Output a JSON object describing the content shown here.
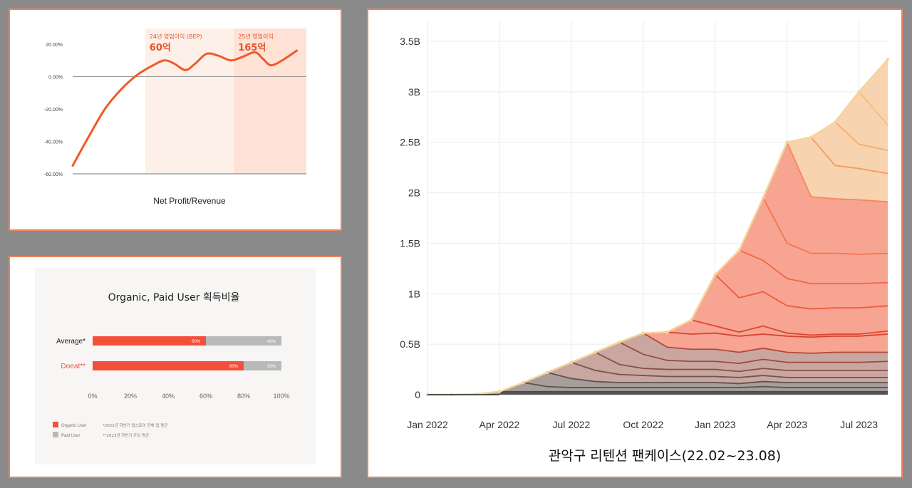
{
  "panel1": {
    "title": "Net Profit/Revenue",
    "type": "line",
    "yticks": [
      "20.00%",
      "0.00%",
      "-20.00%",
      "-40.00%",
      "-60.00%"
    ],
    "tick_values": [
      20,
      0,
      -20,
      -40,
      -60
    ],
    "ylim": [
      -60,
      20
    ],
    "band1": {
      "label": "24년 영업이익 (BEP)",
      "value": "60억",
      "from_x": 4.5,
      "to_x": 10
    },
    "band2": {
      "label": "25년 영업이익",
      "value": "165억",
      "from_x": 10,
      "to_x": 14.5
    },
    "xlim": [
      0,
      14.5
    ],
    "line_color": "#f05a28",
    "points": [
      {
        "x": 0.0,
        "y": -55
      },
      {
        "x": 1.0,
        "y": -37
      },
      {
        "x": 2.0,
        "y": -20
      },
      {
        "x": 3.0,
        "y": -8
      },
      {
        "x": 4.0,
        "y": 1
      },
      {
        "x": 5.0,
        "y": 7
      },
      {
        "x": 5.7,
        "y": 10
      },
      {
        "x": 6.3,
        "y": 8
      },
      {
        "x": 7.0,
        "y": 4
      },
      {
        "x": 7.6,
        "y": 8
      },
      {
        "x": 8.3,
        "y": 14
      },
      {
        "x": 9.0,
        "y": 13
      },
      {
        "x": 9.8,
        "y": 10
      },
      {
        "x": 10.5,
        "y": 12
      },
      {
        "x": 11.3,
        "y": 15
      },
      {
        "x": 11.8,
        "y": 11
      },
      {
        "x": 12.3,
        "y": 7
      },
      {
        "x": 13.0,
        "y": 10
      },
      {
        "x": 13.9,
        "y": 16
      }
    ]
  },
  "panel2": {
    "title": "Organic, Paid User 획득비율",
    "type": "bar",
    "categories": [
      "Average*",
      "Doeat**"
    ],
    "series": [
      {
        "name": "Organic User",
        "values": [
          60,
          80
        ],
        "labels": [
          "60%",
          "80%"
        ],
        "color": "#f2503a"
      },
      {
        "name": "Paid User",
        "values": [
          40,
          20
        ],
        "labels": [
          "40%",
          "20%"
        ],
        "color": "#b9b9b9"
      }
    ],
    "xticks": [
      "0%",
      "20%",
      "40%",
      "60%",
      "80%",
      "100%"
    ],
    "xlim": [
      0,
      100
    ],
    "notes": [
      "*2022년 하반기 앱스토어 전체 앱 평균",
      "**2023년 하반기 두잇 평균"
    ]
  },
  "panel3": {
    "title": "관악구 리텐션 팬케이스(22.02~23.08)",
    "type": "area",
    "yticks": [
      "3.5B",
      "3B",
      "2.5B",
      "2B",
      "1.5B",
      "1B",
      "0.5B",
      "0"
    ],
    "tick_values": [
      3.5,
      3,
      2.5,
      2,
      1.5,
      1,
      0.5,
      0
    ],
    "ylim": [
      0,
      3.5
    ],
    "xticks": [
      "Jan 2022",
      "Apr 2022",
      "Jul 2022",
      "Oct 2022",
      "Jan 2023",
      "Apr 2023",
      "Jul 2023"
    ],
    "xtick_pos": [
      0,
      3,
      6,
      9,
      12,
      15,
      18
    ],
    "xlim": [
      0,
      19.2
    ],
    "total": [
      {
        "x": 0,
        "y": 0
      },
      {
        "x": 1,
        "y": 0
      },
      {
        "x": 2,
        "y": 0.005
      },
      {
        "x": 3,
        "y": 0.03
      },
      {
        "x": 4,
        "y": 0.12
      },
      {
        "x": 5,
        "y": 0.22
      },
      {
        "x": 6,
        "y": 0.32
      },
      {
        "x": 7,
        "y": 0.42
      },
      {
        "x": 8,
        "y": 0.52
      },
      {
        "x": 9,
        "y": 0.61
      },
      {
        "x": 10,
        "y": 0.62
      },
      {
        "x": 11,
        "y": 0.74
      },
      {
        "x": 12,
        "y": 1.19
      },
      {
        "x": 13,
        "y": 1.43
      },
      {
        "x": 14,
        "y": 1.95
      },
      {
        "x": 15,
        "y": 2.5
      },
      {
        "x": 16,
        "y": 2.55
      },
      {
        "x": 17,
        "y": 2.7
      },
      {
        "x": 18,
        "y": 3.0
      },
      {
        "x": 19.2,
        "y": 3.32
      }
    ],
    "cohort_lines": [
      [
        {
          "x": 10,
          "y": 0.62
        },
        {
          "x": 11,
          "y": 0.6
        },
        {
          "x": 12,
          "y": 0.61
        },
        {
          "x": 13,
          "y": 0.58
        },
        {
          "x": 14,
          "y": 0.6
        },
        {
          "x": 15,
          "y": 0.58
        },
        {
          "x": 16,
          "y": 0.57
        },
        {
          "x": 17,
          "y": 0.58
        },
        {
          "x": 18,
          "y": 0.58
        },
        {
          "x": 19.2,
          "y": 0.6
        }
      ],
      [
        {
          "x": 11,
          "y": 0.74
        },
        {
          "x": 12,
          "y": 0.68
        },
        {
          "x": 13,
          "y": 0.62
        },
        {
          "x": 14,
          "y": 0.68
        },
        {
          "x": 15,
          "y": 0.61
        },
        {
          "x": 16,
          "y": 0.59
        },
        {
          "x": 17,
          "y": 0.6
        },
        {
          "x": 18,
          "y": 0.6
        },
        {
          "x": 19.2,
          "y": 0.63
        }
      ],
      [
        {
          "x": 12,
          "y": 1.19
        },
        {
          "x": 13,
          "y": 0.96
        },
        {
          "x": 14,
          "y": 1.02
        },
        {
          "x": 15,
          "y": 0.88
        },
        {
          "x": 16,
          "y": 0.85
        },
        {
          "x": 17,
          "y": 0.86
        },
        {
          "x": 18,
          "y": 0.86
        },
        {
          "x": 19.2,
          "y": 0.88
        }
      ],
      [
        {
          "x": 13,
          "y": 1.43
        },
        {
          "x": 14,
          "y": 1.33
        },
        {
          "x": 15,
          "y": 1.15
        },
        {
          "x": 16,
          "y": 1.1
        },
        {
          "x": 17,
          "y": 1.1
        },
        {
          "x": 18,
          "y": 1.1
        },
        {
          "x": 19.2,
          "y": 1.11
        }
      ],
      [
        {
          "x": 14,
          "y": 1.95
        },
        {
          "x": 15,
          "y": 1.5
        },
        {
          "x": 16,
          "y": 1.4
        },
        {
          "x": 17,
          "y": 1.4
        },
        {
          "x": 18,
          "y": 1.39
        },
        {
          "x": 19.2,
          "y": 1.4
        }
      ],
      [
        {
          "x": 15,
          "y": 2.5
        },
        {
          "x": 16,
          "y": 1.96
        },
        {
          "x": 17,
          "y": 1.94
        },
        {
          "x": 18,
          "y": 1.93
        },
        {
          "x": 19.2,
          "y": 1.91
        }
      ],
      [
        {
          "x": 16,
          "y": 2.55
        },
        {
          "x": 17,
          "y": 2.27
        },
        {
          "x": 18,
          "y": 2.24
        },
        {
          "x": 19.2,
          "y": 2.19
        }
      ],
      [
        {
          "x": 17,
          "y": 2.7
        },
        {
          "x": 18,
          "y": 2.48
        },
        {
          "x": 19.2,
          "y": 2.42
        }
      ],
      [
        {
          "x": 18,
          "y": 3.0
        },
        {
          "x": 19.2,
          "y": 2.67
        }
      ]
    ],
    "dark_lines": [
      [
        {
          "x": 3,
          "y": 0.03
        },
        {
          "x": 4,
          "y": 0.03
        },
        {
          "x": 5,
          "y": 0.03
        },
        {
          "x": 6,
          "y": 0.03
        },
        {
          "x": 7,
          "y": 0.03
        },
        {
          "x": 8,
          "y": 0.03
        },
        {
          "x": 9,
          "y": 0.03
        },
        {
          "x": 10,
          "y": 0.03
        },
        {
          "x": 11,
          "y": 0.03
        },
        {
          "x": 12,
          "y": 0.03
        },
        {
          "x": 13,
          "y": 0.03
        },
        {
          "x": 14,
          "y": 0.03
        },
        {
          "x": 15,
          "y": 0.03
        },
        {
          "x": 16,
          "y": 0.03
        },
        {
          "x": 17,
          "y": 0.03
        },
        {
          "x": 18,
          "y": 0.03
        },
        {
          "x": 19.2,
          "y": 0.03
        }
      ],
      [
        {
          "x": 4,
          "y": 0.12
        },
        {
          "x": 5,
          "y": 0.08
        },
        {
          "x": 6,
          "y": 0.07
        },
        {
          "x": 7,
          "y": 0.07
        },
        {
          "x": 8,
          "y": 0.07
        },
        {
          "x": 9,
          "y": 0.07
        },
        {
          "x": 10,
          "y": 0.07
        },
        {
          "x": 11,
          "y": 0.07
        },
        {
          "x": 12,
          "y": 0.07
        },
        {
          "x": 13,
          "y": 0.07
        },
        {
          "x": 14,
          "y": 0.08
        },
        {
          "x": 15,
          "y": 0.07
        },
        {
          "x": 16,
          "y": 0.07
        },
        {
          "x": 17,
          "y": 0.07
        },
        {
          "x": 18,
          "y": 0.07
        },
        {
          "x": 19.2,
          "y": 0.07
        }
      ],
      [
        {
          "x": 5,
          "y": 0.22
        },
        {
          "x": 6,
          "y": 0.16
        },
        {
          "x": 7,
          "y": 0.13
        },
        {
          "x": 8,
          "y": 0.12
        },
        {
          "x": 9,
          "y": 0.12
        },
        {
          "x": 10,
          "y": 0.12
        },
        {
          "x": 11,
          "y": 0.12
        },
        {
          "x": 12,
          "y": 0.12
        },
        {
          "x": 13,
          "y": 0.11
        },
        {
          "x": 14,
          "y": 0.13
        },
        {
          "x": 15,
          "y": 0.12
        },
        {
          "x": 16,
          "y": 0.12
        },
        {
          "x": 17,
          "y": 0.12
        },
        {
          "x": 18,
          "y": 0.12
        },
        {
          "x": 19.2,
          "y": 0.12
        }
      ],
      [
        {
          "x": 6,
          "y": 0.32
        },
        {
          "x": 7,
          "y": 0.24
        },
        {
          "x": 8,
          "y": 0.2
        },
        {
          "x": 9,
          "y": 0.19
        },
        {
          "x": 10,
          "y": 0.18
        },
        {
          "x": 11,
          "y": 0.18
        },
        {
          "x": 12,
          "y": 0.18
        },
        {
          "x": 13,
          "y": 0.17
        },
        {
          "x": 14,
          "y": 0.19
        },
        {
          "x": 15,
          "y": 0.17
        },
        {
          "x": 16,
          "y": 0.17
        },
        {
          "x": 17,
          "y": 0.17
        },
        {
          "x": 18,
          "y": 0.17
        },
        {
          "x": 19.2,
          "y": 0.17
        }
      ],
      [
        {
          "x": 7,
          "y": 0.42
        },
        {
          "x": 8,
          "y": 0.3
        },
        {
          "x": 9,
          "y": 0.26
        },
        {
          "x": 10,
          "y": 0.25
        },
        {
          "x": 11,
          "y": 0.25
        },
        {
          "x": 12,
          "y": 0.25
        },
        {
          "x": 13,
          "y": 0.23
        },
        {
          "x": 14,
          "y": 0.26
        },
        {
          "x": 15,
          "y": 0.24
        },
        {
          "x": 16,
          "y": 0.24
        },
        {
          "x": 17,
          "y": 0.24
        },
        {
          "x": 18,
          "y": 0.24
        },
        {
          "x": 19.2,
          "y": 0.24
        }
      ],
      [
        {
          "x": 8,
          "y": 0.52
        },
        {
          "x": 9,
          "y": 0.4
        },
        {
          "x": 10,
          "y": 0.34
        },
        {
          "x": 11,
          "y": 0.33
        },
        {
          "x": 12,
          "y": 0.33
        },
        {
          "x": 13,
          "y": 0.31
        },
        {
          "x": 14,
          "y": 0.35
        },
        {
          "x": 15,
          "y": 0.32
        },
        {
          "x": 16,
          "y": 0.32
        },
        {
          "x": 17,
          "y": 0.32
        },
        {
          "x": 18,
          "y": 0.32
        },
        {
          "x": 19.2,
          "y": 0.33
        }
      ],
      [
        {
          "x": 9,
          "y": 0.61
        },
        {
          "x": 10,
          "y": 0.47
        },
        {
          "x": 11,
          "y": 0.45
        },
        {
          "x": 12,
          "y": 0.45
        },
        {
          "x": 13,
          "y": 0.42
        },
        {
          "x": 14,
          "y": 0.46
        },
        {
          "x": 15,
          "y": 0.42
        },
        {
          "x": 16,
          "y": 0.41
        },
        {
          "x": 17,
          "y": 0.42
        },
        {
          "x": 18,
          "y": 0.42
        },
        {
          "x": 19.2,
          "y": 0.42
        }
      ]
    ],
    "colors": {
      "top_band": "#f8d3b0",
      "mid_band": "#f7a493",
      "low_band": "#c9a7a0",
      "base_band": "#8b8b8b",
      "total_line": "#f5d49a"
    }
  }
}
